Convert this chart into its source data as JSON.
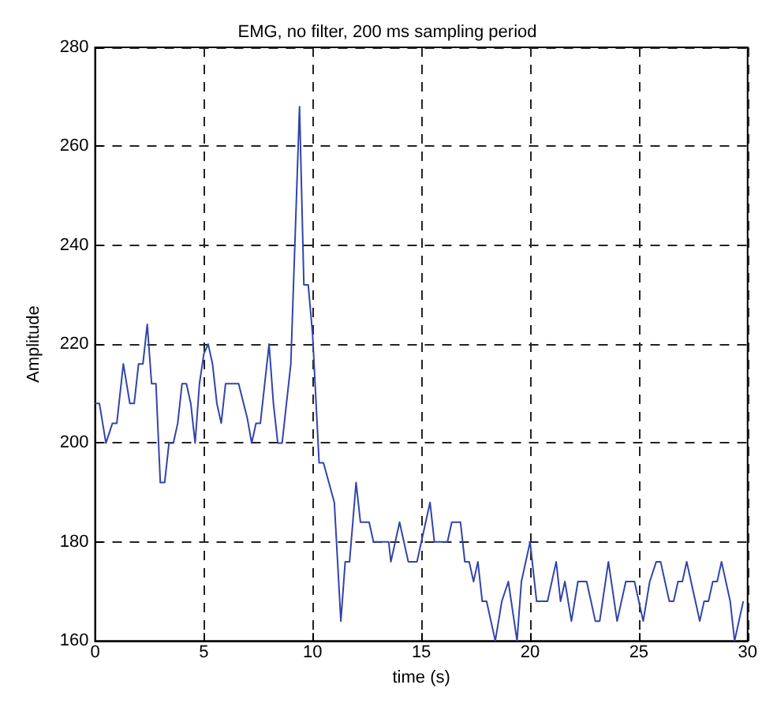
{
  "chart_data": {
    "type": "line",
    "title": "EMG, no filter, 200 ms sampling period",
    "xlabel": "time (s)",
    "ylabel": "Amplitude",
    "xlim": [
      0,
      30
    ],
    "ylim": [
      160,
      280
    ],
    "xticks": [
      0,
      5,
      10,
      15,
      20,
      25,
      30
    ],
    "yticks": [
      160,
      180,
      200,
      220,
      240,
      260,
      280
    ],
    "grid": true,
    "series": [
      {
        "color": "#3344aa",
        "x": [
          0,
          0.2,
          0.5,
          0.8,
          1.0,
          1.3,
          1.6,
          1.8,
          2.0,
          2.2,
          2.4,
          2.6,
          2.8,
          3.0,
          3.2,
          3.4,
          3.6,
          3.8,
          4.0,
          4.2,
          4.4,
          4.6,
          4.8,
          5.0,
          5.2,
          5.4,
          5.6,
          5.8,
          6.0,
          6.6,
          7.0,
          7.2,
          7.4,
          7.6,
          8.0,
          8.2,
          8.4,
          8.6,
          8.8,
          9.0,
          9.4,
          9.6,
          9.8,
          10.0,
          10.3,
          10.5,
          11.0,
          11.3,
          11.5,
          11.7,
          12.0,
          12.2,
          12.6,
          12.8,
          13.5,
          13.6,
          14.0,
          14.4,
          14.8,
          15.0,
          15.4,
          15.6,
          16.2,
          16.4,
          16.8,
          17.0,
          17.2,
          17.4,
          17.6,
          17.8,
          18.0,
          18.4,
          18.7,
          19.0,
          19.4,
          19.6,
          20.0,
          20.3,
          20.5,
          20.8,
          21.2,
          21.4,
          21.6,
          21.9,
          22.2,
          22.6,
          23.0,
          23.2,
          23.6,
          24.0,
          24.4,
          24.8,
          25.2,
          25.5,
          25.8,
          26.0,
          26.4,
          26.6,
          26.8,
          27.0,
          27.2,
          27.4,
          27.8,
          28.0,
          28.2,
          28.4,
          28.6,
          28.8,
          29.2,
          29.4,
          29.8
        ],
        "values": [
          208,
          208,
          200,
          204,
          204,
          216,
          208,
          208,
          216,
          216,
          224,
          212,
          212,
          192,
          192,
          200,
          200,
          204,
          212,
          212,
          208,
          200,
          212,
          218,
          220,
          216,
          208,
          204,
          212,
          212,
          205,
          200,
          204,
          204,
          220,
          208,
          200,
          200,
          208,
          216,
          268,
          232,
          232,
          222,
          196,
          196,
          188,
          164,
          176,
          176,
          192,
          184,
          184,
          180,
          180,
          176,
          184,
          176,
          176,
          180,
          188,
          180,
          180,
          184,
          184,
          176,
          176,
          172,
          176,
          168,
          168,
          160,
          168,
          172,
          160,
          172,
          180,
          168,
          168,
          168,
          176,
          168,
          172,
          164,
          172,
          172,
          164,
          164,
          176,
          164,
          172,
          172,
          164,
          172,
          176,
          176,
          168,
          168,
          172,
          172,
          176,
          172,
          164,
          168,
          168,
          172,
          172,
          176,
          168,
          160,
          168
        ]
      }
    ]
  }
}
